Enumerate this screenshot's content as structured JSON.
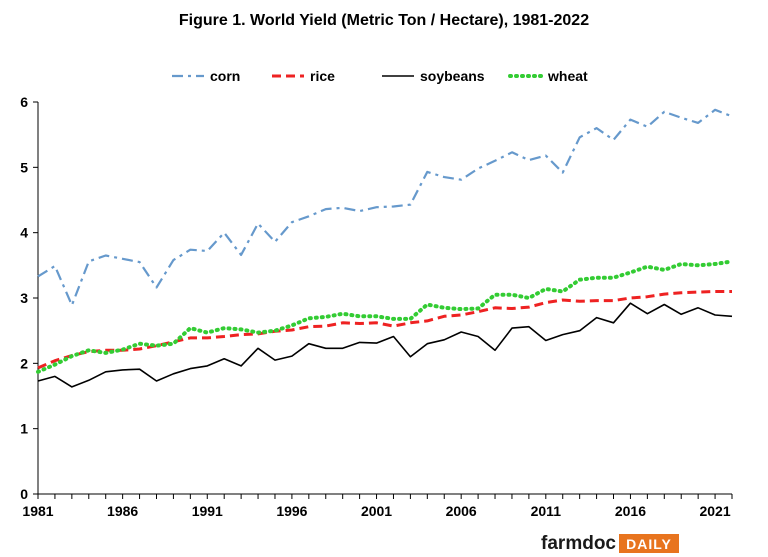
{
  "chart_data": {
    "type": "line",
    "title": "Figure 1.  World Yield (Metric Ton / Hectare), 1981-2022",
    "xlabel": "",
    "ylabel": "",
    "xlim": [
      1981,
      2022
    ],
    "ylim": [
      0,
      6
    ],
    "x_ticks": [
      1981,
      1986,
      1991,
      1996,
      2001,
      2006,
      2011,
      2016,
      2021
    ],
    "y_ticks": [
      0,
      1,
      2,
      3,
      4,
      5,
      6
    ],
    "grid": false,
    "legend_position": "top-center",
    "x": [
      1981,
      1982,
      1983,
      1984,
      1985,
      1986,
      1987,
      1988,
      1989,
      1990,
      1991,
      1992,
      1993,
      1994,
      1995,
      1996,
      1997,
      1998,
      1999,
      2000,
      2001,
      2002,
      2003,
      2004,
      2005,
      2006,
      2007,
      2008,
      2009,
      2010,
      2011,
      2012,
      2013,
      2014,
      2015,
      2016,
      2017,
      2018,
      2019,
      2020,
      2021,
      2022
    ],
    "series": [
      {
        "name": "corn",
        "color": "#6699cc",
        "dash": "dashdot",
        "values": [
          3.33,
          3.49,
          2.89,
          3.56,
          3.65,
          3.6,
          3.55,
          3.16,
          3.58,
          3.74,
          3.72,
          4.0,
          3.66,
          4.14,
          3.86,
          4.16,
          4.25,
          4.36,
          4.38,
          4.33,
          4.39,
          4.4,
          4.43,
          4.93,
          4.85,
          4.81,
          4.98,
          5.1,
          5.23,
          5.11,
          5.18,
          4.92,
          5.46,
          5.6,
          5.42,
          5.73,
          5.62,
          5.85,
          5.76,
          5.68,
          5.88,
          5.78
        ]
      },
      {
        "name": "rice",
        "color": "#ee2222",
        "dash": "dashed",
        "values": [
          1.93,
          2.04,
          2.12,
          2.18,
          2.2,
          2.2,
          2.22,
          2.27,
          2.33,
          2.39,
          2.39,
          2.41,
          2.44,
          2.45,
          2.49,
          2.51,
          2.56,
          2.57,
          2.62,
          2.61,
          2.62,
          2.57,
          2.62,
          2.65,
          2.72,
          2.74,
          2.79,
          2.85,
          2.84,
          2.86,
          2.93,
          2.97,
          2.95,
          2.96,
          2.96,
          3.0,
          3.02,
          3.06,
          3.08,
          3.09,
          3.1,
          3.1
        ]
      },
      {
        "name": "soybeans",
        "color": "#000000",
        "dash": "solid",
        "values": [
          1.73,
          1.8,
          1.64,
          1.74,
          1.87,
          1.9,
          1.91,
          1.73,
          1.84,
          1.92,
          1.96,
          2.07,
          1.96,
          2.23,
          2.05,
          2.11,
          2.3,
          2.23,
          2.23,
          2.32,
          2.31,
          2.41,
          2.1,
          2.3,
          2.36,
          2.48,
          2.41,
          2.2,
          2.54,
          2.56,
          2.35,
          2.44,
          2.5,
          2.7,
          2.62,
          2.92,
          2.76,
          2.9,
          2.75,
          2.85,
          2.74,
          2.72
        ]
      },
      {
        "name": "wheat",
        "color": "#33cc33",
        "dash": "dotted",
        "values": [
          1.87,
          1.98,
          2.11,
          2.2,
          2.16,
          2.21,
          2.3,
          2.27,
          2.3,
          2.54,
          2.47,
          2.54,
          2.52,
          2.47,
          2.5,
          2.58,
          2.69,
          2.71,
          2.76,
          2.72,
          2.72,
          2.68,
          2.68,
          2.9,
          2.85,
          2.83,
          2.84,
          3.05,
          3.05,
          3.0,
          3.14,
          3.1,
          3.28,
          3.31,
          3.31,
          3.39,
          3.48,
          3.43,
          3.52,
          3.5,
          3.52,
          3.56
        ]
      }
    ]
  },
  "branding": {
    "part1": "farmdoc",
    "part2": "DAILY"
  }
}
